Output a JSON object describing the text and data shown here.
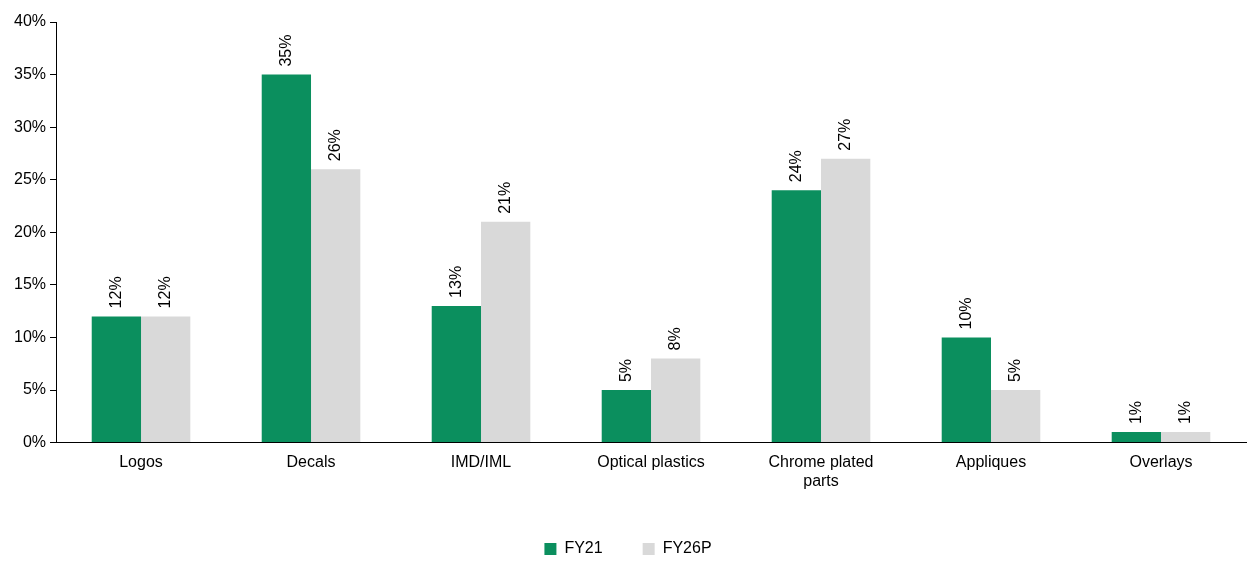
{
  "chart_data": {
    "type": "bar",
    "categories": [
      "Logos",
      "Decals",
      "IMD/IML",
      "Optical plastics",
      "Chrome plated parts",
      "Appliques",
      "Overlays"
    ],
    "series": [
      {
        "name": "FY21",
        "color": "#0b8f5e",
        "values": [
          12,
          35,
          13,
          5,
          24,
          10,
          1
        ],
        "value_labels": [
          "12%",
          "35%",
          "13%",
          "5%",
          "24%",
          "10%",
          "1%"
        ]
      },
      {
        "name": "FY26P",
        "color": "#d9d9d9",
        "values": [
          12,
          26,
          21,
          8,
          27,
          5,
          1
        ],
        "value_labels": [
          "12%",
          "26%",
          "21%",
          "8%",
          "27%",
          "5%",
          "1%"
        ]
      }
    ],
    "ylim": [
      0,
      40
    ],
    "yticks": [
      {
        "value": 0,
        "label": "0%"
      },
      {
        "value": 5,
        "label": "5%"
      },
      {
        "value": 10,
        "label": "10%"
      },
      {
        "value": 15,
        "label": "15%"
      },
      {
        "value": 20,
        "label": "20%"
      },
      {
        "value": 25,
        "label": "25%"
      },
      {
        "value": 30,
        "label": "30%"
      },
      {
        "value": 35,
        "label": "35%"
      },
      {
        "value": 40,
        "label": "40%"
      }
    ],
    "grid": false,
    "legend": "bottom"
  }
}
